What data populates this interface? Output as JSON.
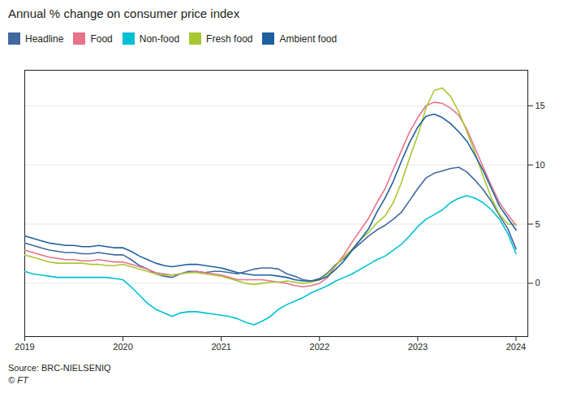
{
  "chart_data": {
    "type": "line",
    "title": "Annual % change on consumer price index",
    "annotations": [
      "Source: BRC-NIELSENIQ",
      "© FT"
    ],
    "x": [
      2019.0,
      2019.083,
      2019.167,
      2019.25,
      2019.333,
      2019.417,
      2019.5,
      2019.583,
      2019.667,
      2019.75,
      2019.833,
      2019.917,
      2020.0,
      2020.083,
      2020.167,
      2020.25,
      2020.333,
      2020.417,
      2020.5,
      2020.583,
      2020.667,
      2020.75,
      2020.833,
      2020.917,
      2021.0,
      2021.083,
      2021.167,
      2021.25,
      2021.333,
      2021.417,
      2021.5,
      2021.583,
      2021.667,
      2021.75,
      2021.833,
      2021.917,
      2022.0,
      2022.083,
      2022.167,
      2022.25,
      2022.333,
      2022.417,
      2022.5,
      2022.583,
      2022.667,
      2022.75,
      2022.833,
      2022.917,
      2023.0,
      2023.083,
      2023.167,
      2023.25,
      2023.333,
      2023.417,
      2023.5,
      2023.583,
      2023.667,
      2023.75,
      2023.833,
      2023.917,
      2024.0
    ],
    "series": [
      {
        "name": "Headline",
        "color": "#4169a0",
        "values": [
          3.4,
          3.2,
          3.0,
          2.8,
          2.7,
          2.6,
          2.6,
          2.5,
          2.5,
          2.6,
          2.5,
          2.4,
          2.4,
          2.0,
          1.5,
          1.2,
          0.8,
          0.6,
          0.5,
          0.8,
          1.0,
          1.0,
          0.9,
          1.0,
          1.0,
          0.9,
          0.8,
          1.0,
          1.2,
          1.3,
          1.3,
          1.2,
          0.8,
          0.6,
          0.3,
          0.2,
          0.4,
          0.9,
          1.6,
          2.1,
          2.8,
          3.4,
          4.0,
          4.5,
          4.9,
          5.4,
          6.0,
          7.0,
          8.0,
          8.9,
          9.3,
          9.5,
          9.7,
          9.8,
          9.4,
          8.7,
          7.9,
          6.9,
          5.7,
          4.6,
          2.9
        ]
      },
      {
        "name": "Food",
        "color": "#e8728a",
        "values": [
          2.8,
          2.6,
          2.4,
          2.2,
          2.1,
          2.0,
          2.0,
          1.9,
          1.9,
          2.0,
          1.9,
          1.8,
          1.8,
          1.6,
          1.4,
          1.2,
          0.9,
          0.8,
          0.7,
          0.8,
          0.9,
          1.0,
          0.9,
          0.8,
          0.7,
          0.5,
          0.3,
          0.3,
          0.3,
          0.3,
          0.2,
          0.1,
          0.0,
          -0.2,
          -0.3,
          -0.2,
          0.0,
          0.5,
          1.5,
          2.4,
          3.5,
          4.5,
          5.5,
          6.8,
          8.0,
          9.6,
          11.2,
          12.8,
          14.0,
          15.0,
          15.3,
          15.2,
          14.8,
          14.2,
          13.0,
          11.4,
          9.8,
          8.2,
          6.8,
          5.8,
          4.9
        ]
      },
      {
        "name": "Non-food",
        "color": "#00c0d4",
        "values": [
          1.0,
          0.8,
          0.7,
          0.6,
          0.5,
          0.5,
          0.5,
          0.5,
          0.5,
          0.5,
          0.5,
          0.4,
          0.3,
          -0.3,
          -1.0,
          -1.7,
          -2.2,
          -2.5,
          -2.8,
          -2.5,
          -2.4,
          -2.4,
          -2.5,
          -2.6,
          -2.7,
          -2.8,
          -3.0,
          -3.3,
          -3.5,
          -3.2,
          -2.8,
          -2.2,
          -1.8,
          -1.5,
          -1.2,
          -0.8,
          -0.5,
          -0.2,
          0.2,
          0.5,
          0.8,
          1.2,
          1.6,
          2.0,
          2.3,
          2.8,
          3.3,
          4.0,
          4.8,
          5.4,
          5.8,
          6.2,
          6.8,
          7.2,
          7.4,
          7.2,
          6.8,
          6.2,
          5.4,
          4.2,
          2.5
        ]
      },
      {
        "name": "Fresh food",
        "color": "#a8c832",
        "values": [
          2.4,
          2.2,
          2.0,
          1.8,
          1.7,
          1.7,
          1.7,
          1.7,
          1.6,
          1.6,
          1.5,
          1.5,
          1.6,
          1.4,
          1.2,
          1.0,
          0.8,
          0.7,
          0.7,
          0.8,
          0.9,
          0.9,
          0.8,
          0.7,
          0.6,
          0.4,
          0.2,
          0.0,
          -0.1,
          0.0,
          0.1,
          0.1,
          0.2,
          0.1,
          0.0,
          0.1,
          0.3,
          0.8,
          1.5,
          2.2,
          2.9,
          3.7,
          4.3,
          5.1,
          5.7,
          6.8,
          8.5,
          10.6,
          12.5,
          14.8,
          16.3,
          16.5,
          15.8,
          14.5,
          12.8,
          11.0,
          9.0,
          7.2,
          5.8,
          5.0,
          5.0
        ]
      },
      {
        "name": "Ambient food",
        "color": "#1e5fa0",
        "values": [
          4.0,
          3.8,
          3.6,
          3.4,
          3.3,
          3.2,
          3.2,
          3.1,
          3.1,
          3.2,
          3.1,
          3.0,
          3.0,
          2.7,
          2.3,
          2.0,
          1.7,
          1.5,
          1.4,
          1.5,
          1.6,
          1.6,
          1.5,
          1.4,
          1.3,
          1.1,
          0.9,
          0.8,
          0.7,
          0.7,
          0.7,
          0.6,
          0.5,
          0.3,
          0.2,
          0.2,
          0.3,
          0.6,
          1.2,
          1.9,
          2.8,
          3.7,
          4.6,
          6.0,
          7.2,
          8.6,
          10.3,
          11.9,
          13.2,
          14.1,
          14.3,
          14.0,
          13.5,
          12.8,
          12.0,
          10.8,
          9.5,
          8.0,
          6.5,
          5.5,
          4.5
        ]
      }
    ],
    "xlim": [
      2019.0,
      2024.12
    ],
    "xticks": [
      2019,
      2020,
      2021,
      2022,
      2023,
      2024
    ],
    "ylim": [
      -4.5,
      18
    ],
    "yticks": [
      0,
      5,
      10,
      15
    ],
    "grid": true,
    "legend": "top-left"
  }
}
